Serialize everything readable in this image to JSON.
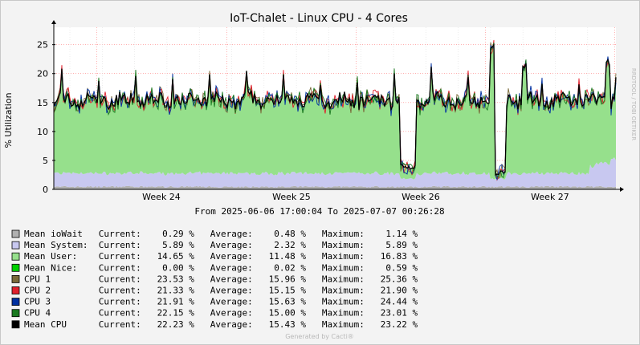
{
  "chart_data": {
    "type": "area",
    "title": "IoT-Chalet - Linux CPU - 4 Cores",
    "ylabel": "% Utilization",
    "xlabel": "",
    "ylim": [
      0,
      28
    ],
    "y_ticks": [
      0,
      5,
      10,
      15,
      20,
      25
    ],
    "x_ticks": [
      "Week 24",
      "Week 25",
      "Week 26",
      "Week 27"
    ],
    "x_range": "From 2025-06-06 17:00:04 To 2025-07-07 00:26:28",
    "grid": true,
    "watermark": "RRDTOOL / TOBI OETIKER",
    "footer": "Generated by Cacti®",
    "series": [
      {
        "name": "Mean ioWait",
        "color": "#b0b0b0",
        "style": "area",
        "current": "0.29 %",
        "average": "0.48 %",
        "maximum": "1.14 %"
      },
      {
        "name": "Mean System:",
        "color": "#c8c8f0",
        "style": "area",
        "current": "5.89 %",
        "average": "2.32 %",
        "maximum": "5.89 %"
      },
      {
        "name": "Mean User:",
        "color": "#96e08c",
        "style": "area",
        "current": "14.65 %",
        "average": "11.48 %",
        "maximum": "16.83 %"
      },
      {
        "name": "Mean Nice:",
        "color": "#00d000",
        "style": "area",
        "current": "0.00 %",
        "average": "0.02 %",
        "maximum": "0.59 %"
      },
      {
        "name": "CPU 1",
        "color": "#7a6a3a",
        "style": "line",
        "current": "23.53 %",
        "average": "15.96 %",
        "maximum": "25.36 %"
      },
      {
        "name": "CPU 2",
        "color": "#e0202c",
        "style": "line",
        "current": "21.33 %",
        "average": "15.15 %",
        "maximum": "21.90 %"
      },
      {
        "name": "CPU 3",
        "color": "#0030a0",
        "style": "line",
        "current": "21.91 %",
        "average": "15.63 %",
        "maximum": "24.44 %"
      },
      {
        "name": "CPU 4",
        "color": "#1a7a20",
        "style": "line",
        "current": "22.15 %",
        "average": "15.00 %",
        "maximum": "23.01 %"
      },
      {
        "name": "Mean CPU",
        "color": "#000000",
        "style": "line",
        "current": "22.23 %",
        "average": "15.43 %",
        "maximum": "23.22 %"
      }
    ],
    "legend_headers": {
      "current": "Current:",
      "average": "Average:",
      "maximum": "Maximum:"
    },
    "approx_trend": {
      "baseline_total": 15.4,
      "dips": [
        {
          "week_position": 25.9,
          "value": 3.5
        },
        {
          "week_position": 26.6,
          "value": 2.5
        }
      ],
      "peaks": [
        {
          "week_position": 26.55,
          "value": 25.4
        },
        {
          "week_position": 26.8,
          "value": 22.0
        },
        {
          "week_position": 27.45,
          "value": 22.5
        }
      ]
    }
  }
}
